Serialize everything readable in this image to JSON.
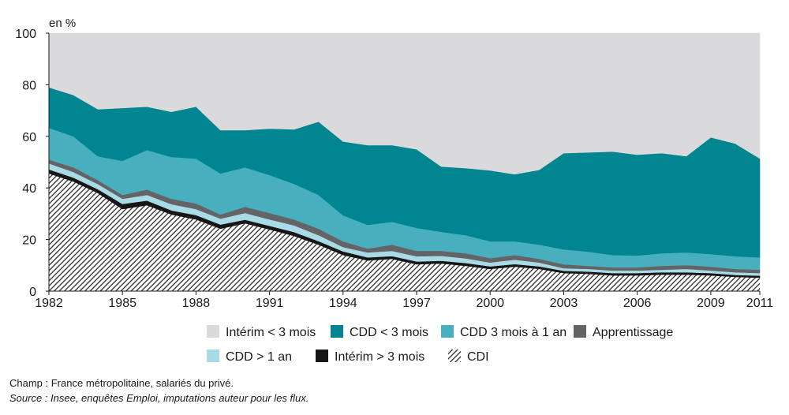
{
  "chart_data": {
    "type": "area",
    "stacked": true,
    "ylabel": "en %",
    "ylim": [
      0,
      100
    ],
    "yticks": [
      0,
      20,
      40,
      60,
      80,
      100
    ],
    "xticks": [
      1982,
      1985,
      1988,
      1991,
      1994,
      1997,
      2000,
      2003,
      2006,
      2009,
      2011
    ],
    "grid": false,
    "legend_position": "bottom",
    "x": [
      1982,
      1983,
      1984,
      1985,
      1986,
      1987,
      1988,
      1989,
      1990,
      1991,
      1992,
      1993,
      1994,
      1995,
      1996,
      1997,
      1998,
      1999,
      2000,
      2001,
      2002,
      2003,
      2004,
      2005,
      2006,
      2007,
      2008,
      2009,
      2010,
      2011
    ],
    "series": [
      {
        "name": "CDI",
        "color": "#2e2e2e",
        "hatched": true,
        "values": [
          45.6,
          42.5,
          38.0,
          31.8,
          33.3,
          29.7,
          27.8,
          24.2,
          26.3,
          23.9,
          21.4,
          18.0,
          14.0,
          11.9,
          12.5,
          10.4,
          10.7,
          9.8,
          8.6,
          9.5,
          8.6,
          7.0,
          6.7,
          6.1,
          6.1,
          6.4,
          6.4,
          6.1,
          5.5,
          5.2
        ]
      },
      {
        "name": "Intérim > 3 mois",
        "color": "#161616",
        "values": [
          1.6,
          1.5,
          1.5,
          2.0,
          1.8,
          1.6,
          1.7,
          1.6,
          1.4,
          1.4,
          1.5,
          1.4,
          1.4,
          1.2,
          1.1,
          1.1,
          1.1,
          1.1,
          1.0,
          1.0,
          1.0,
          0.9,
          0.9,
          0.9,
          0.9,
          0.9,
          0.9,
          0.9,
          0.8,
          0.8
        ]
      },
      {
        "name": "CDD > 1 an",
        "color": "#a8dbe6",
        "values": [
          2.3,
          2.2,
          2.0,
          2.0,
          2.2,
          2.4,
          2.3,
          2.3,
          2.6,
          2.5,
          2.6,
          2.3,
          1.7,
          1.9,
          2.0,
          2.0,
          1.9,
          1.8,
          1.5,
          1.7,
          1.5,
          1.0,
          1.0,
          1.0,
          1.0,
          1.0,
          1.3,
          1.0,
          1.0,
          1.0
        ]
      },
      {
        "name": "Apprentissage",
        "color": "#646467",
        "values": [
          1.5,
          1.8,
          1.5,
          1.5,
          2.1,
          2.1,
          2.2,
          1.6,
          2.4,
          2.5,
          2.3,
          2.5,
          2.2,
          1.5,
          2.4,
          2.1,
          1.9,
          2.0,
          1.7,
          1.8,
          1.4,
          1.5,
          1.2,
          1.2,
          1.2,
          1.5,
          1.5,
          1.5,
          1.3,
          1.3
        ]
      },
      {
        "name": "CDD 3 mois à 1 an",
        "color": "#48afbe",
        "values": [
          12.3,
          12.0,
          9.3,
          13.2,
          15.3,
          16.2,
          17.4,
          15.9,
          15.3,
          14.7,
          13.8,
          13.1,
          10.1,
          9.2,
          8.9,
          8.9,
          7.4,
          7.0,
          6.5,
          5.3,
          5.5,
          5.8,
          5.5,
          4.8,
          4.6,
          4.9,
          4.9,
          4.9,
          4.9,
          4.8
        ]
      },
      {
        "name": "CDD < 3 mois",
        "color": "#008591",
        "values": [
          15.7,
          16.0,
          18.2,
          20.5,
          16.8,
          17.5,
          20.1,
          16.8,
          14.4,
          18.0,
          21.1,
          28.4,
          28.6,
          30.9,
          29.7,
          30.5,
          25.3,
          26.0,
          27.5,
          26.0,
          29.0,
          37.3,
          38.5,
          40.1,
          39.1,
          38.8,
          37.3,
          45.2,
          43.7,
          38.3
        ]
      },
      {
        "name": "Intérim < 3 mois",
        "color": "#dadadc",
        "values": [
          21.0,
          24.0,
          29.5,
          29.0,
          28.5,
          30.5,
          28.5,
          37.6,
          37.6,
          37.0,
          37.3,
          34.3,
          42.0,
          43.4,
          43.4,
          45.0,
          51.7,
          52.3,
          53.2,
          54.7,
          53.0,
          46.5,
          46.2,
          45.9,
          47.1,
          46.5,
          47.7,
          40.4,
          42.8,
          48.6
        ]
      }
    ]
  },
  "notes": {
    "champ": "Champ : France métropolitaine, salariés du privé.",
    "source": "Source : Insee, enquêtes Emploi, imputations auteur pour les flux."
  }
}
